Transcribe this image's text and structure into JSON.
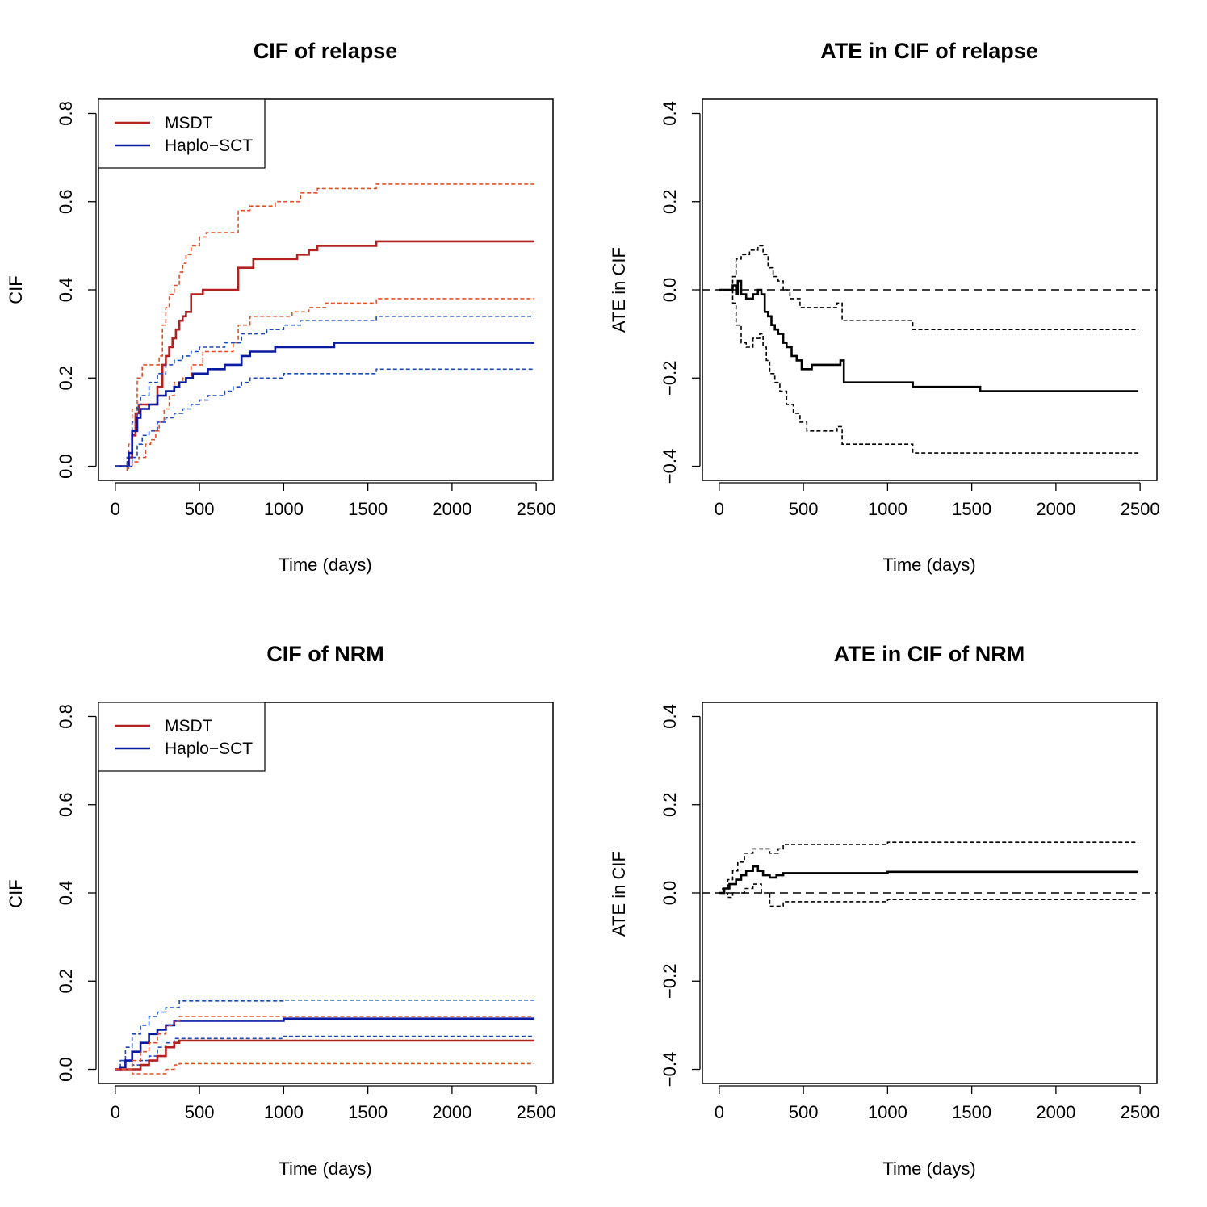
{
  "colors": {
    "msdt": "#b22222",
    "msdt_ci": "#e0502a",
    "haplo": "#0a1aa0",
    "haplo_ci": "#1c4ab8",
    "ate": "#000000"
  },
  "chart_data": [
    {
      "id": "cif-relapse",
      "type": "line",
      "step": true,
      "title": "CIF of relapse",
      "xlabel": "Time (days)",
      "ylabel": "CIF",
      "xlim": [
        0,
        2500
      ],
      "ylim": [
        0,
        0.8
      ],
      "xticks": [
        0,
        500,
        1000,
        1500,
        2000,
        2500
      ],
      "xtick_labels": [
        "0",
        "500",
        "1000",
        "1500",
        "2000",
        "2500"
      ],
      "yticks": [
        0,
        0.2,
        0.4,
        0.6,
        0.8
      ],
      "ytick_labels": [
        "0.0",
        "0.2",
        "0.4",
        "0.6",
        "0.8"
      ],
      "legend": {
        "position": "top-left",
        "entries": [
          {
            "label": "MSDT",
            "color_key": "msdt"
          },
          {
            "label": "Haplo−SCT",
            "color_key": "haplo"
          }
        ]
      },
      "series": [
        {
          "name": "MSDT upper CI",
          "color_key": "msdt_ci",
          "dashed": true,
          "width": 1.6,
          "x": [
            0,
            70,
            80,
            100,
            130,
            160,
            200,
            260,
            280,
            300,
            320,
            350,
            380,
            400,
            420,
            450,
            500,
            540,
            700,
            730,
            800,
            950,
            1000,
            1100,
            1200,
            1550,
            2490
          ],
          "y": [
            0,
            0,
            0.05,
            0.13,
            0.2,
            0.23,
            0.23,
            0.25,
            0.32,
            0.36,
            0.39,
            0.41,
            0.44,
            0.46,
            0.48,
            0.5,
            0.52,
            0.53,
            0.53,
            0.58,
            0.59,
            0.6,
            0.6,
            0.62,
            0.63,
            0.64,
            0.64
          ]
        },
        {
          "name": "MSDT",
          "color_key": "msdt",
          "dashed": false,
          "width": 2.6,
          "x": [
            0,
            70,
            80,
            100,
            120,
            140,
            180,
            230,
            250,
            280,
            300,
            320,
            340,
            360,
            380,
            400,
            420,
            450,
            480,
            520,
            710,
            730,
            790,
            820,
            900,
            1000,
            1080,
            1150,
            1200,
            1550,
            2490
          ],
          "y": [
            0,
            0,
            0.02,
            0.07,
            0.12,
            0.14,
            0.14,
            0.14,
            0.18,
            0.23,
            0.25,
            0.27,
            0.29,
            0.31,
            0.33,
            0.34,
            0.35,
            0.39,
            0.39,
            0.4,
            0.4,
            0.45,
            0.45,
            0.47,
            0.47,
            0.47,
            0.48,
            0.49,
            0.5,
            0.51,
            0.51
          ]
        },
        {
          "name": "MSDT lower CI",
          "color_key": "msdt_ci",
          "dashed": true,
          "width": 1.6,
          "x": [
            0,
            70,
            80,
            100,
            140,
            180,
            210,
            240,
            260,
            290,
            320,
            350,
            400,
            450,
            520,
            700,
            730,
            800,
            950,
            1050,
            1150,
            1250,
            1550,
            2490
          ],
          "y": [
            0,
            -0.01,
            0.0,
            0.01,
            0.02,
            0.05,
            0.06,
            0.08,
            0.1,
            0.13,
            0.16,
            0.19,
            0.2,
            0.23,
            0.26,
            0.28,
            0.32,
            0.34,
            0.34,
            0.35,
            0.36,
            0.37,
            0.38,
            0.38
          ]
        },
        {
          "name": "Haplo-SCT upper CI",
          "color_key": "haplo_ci",
          "dashed": true,
          "width": 1.6,
          "x": [
            0,
            70,
            100,
            130,
            150,
            200,
            250,
            300,
            350,
            400,
            450,
            500,
            550,
            650,
            700,
            750,
            800,
            900,
            1000,
            1100,
            1500,
            1550,
            2490
          ],
          "y": [
            0,
            0.02,
            0.1,
            0.14,
            0.16,
            0.19,
            0.21,
            0.23,
            0.24,
            0.25,
            0.26,
            0.27,
            0.27,
            0.28,
            0.28,
            0.3,
            0.3,
            0.31,
            0.32,
            0.33,
            0.33,
            0.34,
            0.34
          ]
        },
        {
          "name": "Haplo-SCT",
          "color_key": "haplo",
          "dashed": false,
          "width": 2.6,
          "x": [
            0,
            60,
            80,
            100,
            130,
            150,
            200,
            250,
            300,
            350,
            380,
            420,
            460,
            500,
            550,
            650,
            700,
            750,
            800,
            900,
            950,
            1150,
            1300,
            1550,
            2490
          ],
          "y": [
            0,
            0,
            0.03,
            0.08,
            0.11,
            0.13,
            0.14,
            0.16,
            0.17,
            0.18,
            0.19,
            0.2,
            0.21,
            0.21,
            0.22,
            0.23,
            0.23,
            0.25,
            0.26,
            0.26,
            0.27,
            0.27,
            0.28,
            0.28,
            0.28
          ]
        },
        {
          "name": "Haplo-SCT lower CI",
          "color_key": "haplo_ci",
          "dashed": true,
          "width": 1.6,
          "x": [
            0,
            60,
            100,
            130,
            160,
            200,
            250,
            300,
            350,
            400,
            450,
            500,
            550,
            650,
            700,
            750,
            800,
            900,
            1000,
            1200,
            1550,
            2490
          ],
          "y": [
            0,
            0,
            0.02,
            0.05,
            0.07,
            0.08,
            0.1,
            0.11,
            0.12,
            0.13,
            0.14,
            0.15,
            0.16,
            0.17,
            0.18,
            0.19,
            0.2,
            0.2,
            0.21,
            0.21,
            0.22,
            0.22
          ]
        }
      ]
    },
    {
      "id": "ate-relapse",
      "type": "line",
      "step": true,
      "title": "ATE in CIF of relapse",
      "xlabel": "Time (days)",
      "ylabel": "ATE in CIF",
      "xlim": [
        0,
        2500
      ],
      "ylim": [
        -0.4,
        0.4
      ],
      "xticks": [
        0,
        500,
        1000,
        1500,
        2000,
        2500
      ],
      "xtick_labels": [
        "0",
        "500",
        "1000",
        "1500",
        "2000",
        "2500"
      ],
      "yticks": [
        -0.4,
        -0.2,
        0,
        0.2,
        0.4
      ],
      "ytick_labels": [
        "−0.4",
        "−0.2",
        "0.0",
        "0.2",
        "0.4"
      ],
      "reference_line": 0,
      "series": [
        {
          "name": "ATE upper CI",
          "color_key": "ate",
          "dashed": true,
          "width": 1.6,
          "x": [
            0,
            60,
            80,
            100,
            130,
            180,
            230,
            260,
            290,
            320,
            350,
            380,
            420,
            480,
            520,
            700,
            730,
            800,
            1000,
            1150,
            1550,
            2490
          ],
          "y": [
            0,
            0,
            0.03,
            0.07,
            0.08,
            0.09,
            0.1,
            0.08,
            0.05,
            0.03,
            0.02,
            0.0,
            -0.02,
            -0.04,
            -0.04,
            -0.03,
            -0.07,
            -0.07,
            -0.07,
            -0.09,
            -0.09,
            -0.09
          ]
        },
        {
          "name": "ATE estimate",
          "color_key": "ate",
          "dashed": false,
          "width": 2.6,
          "x": [
            0,
            60,
            80,
            100,
            110,
            130,
            160,
            200,
            230,
            250,
            270,
            290,
            310,
            330,
            350,
            380,
            400,
            430,
            460,
            490,
            550,
            700,
            720,
            740,
            780,
            1000,
            1150,
            1300,
            1550,
            2490
          ],
          "y": [
            0,
            0,
            0.01,
            -0.01,
            0.02,
            -0.01,
            -0.02,
            -0.01,
            0.0,
            -0.01,
            -0.05,
            -0.06,
            -0.08,
            -0.09,
            -0.1,
            -0.12,
            -0.13,
            -0.15,
            -0.16,
            -0.18,
            -0.17,
            -0.17,
            -0.16,
            -0.21,
            -0.21,
            -0.21,
            -0.22,
            -0.22,
            -0.23,
            -0.23
          ]
        },
        {
          "name": "ATE lower CI",
          "color_key": "ate",
          "dashed": true,
          "width": 1.6,
          "x": [
            0,
            60,
            80,
            100,
            130,
            160,
            200,
            240,
            260,
            280,
            300,
            330,
            360,
            400,
            440,
            480,
            520,
            700,
            730,
            800,
            1000,
            1150,
            1550,
            2490
          ],
          "y": [
            0,
            0,
            -0.03,
            -0.08,
            -0.12,
            -0.13,
            -0.11,
            -0.1,
            -0.13,
            -0.16,
            -0.19,
            -0.21,
            -0.23,
            -0.26,
            -0.28,
            -0.3,
            -0.32,
            -0.31,
            -0.35,
            -0.35,
            -0.35,
            -0.37,
            -0.37,
            -0.37
          ]
        }
      ]
    },
    {
      "id": "cif-nrm",
      "type": "line",
      "step": true,
      "title": "CIF of NRM",
      "xlabel": "Time (days)",
      "ylabel": "CIF",
      "xlim": [
        0,
        2500
      ],
      "ylim": [
        0,
        0.8
      ],
      "xticks": [
        0,
        500,
        1000,
        1500,
        2000,
        2500
      ],
      "xtick_labels": [
        "0",
        "500",
        "1000",
        "1500",
        "2000",
        "2500"
      ],
      "yticks": [
        0,
        0.2,
        0.4,
        0.6,
        0.8
      ],
      "ytick_labels": [
        "0.0",
        "0.2",
        "0.4",
        "0.6",
        "0.8"
      ],
      "legend": {
        "position": "top-left",
        "entries": [
          {
            "label": "MSDT",
            "color_key": "msdt"
          },
          {
            "label": "Haplo−SCT",
            "color_key": "haplo"
          }
        ]
      },
      "series": [
        {
          "name": "Haplo-SCT upper CI",
          "color_key": "haplo_ci",
          "dashed": true,
          "width": 1.6,
          "x": [
            0,
            30,
            60,
            100,
            150,
            200,
            250,
            300,
            350,
            380,
            1000,
            2490
          ],
          "y": [
            0,
            0.02,
            0.05,
            0.08,
            0.1,
            0.12,
            0.13,
            0.14,
            0.14,
            0.155,
            0.157,
            0.157
          ]
        },
        {
          "name": "Haplo-SCT",
          "color_key": "haplo",
          "dashed": false,
          "width": 2.6,
          "x": [
            0,
            30,
            60,
            100,
            150,
            200,
            250,
            300,
            350,
            380,
            1000,
            2490
          ],
          "y": [
            0,
            0.005,
            0.02,
            0.04,
            0.06,
            0.08,
            0.09,
            0.1,
            0.11,
            0.11,
            0.115,
            0.115
          ]
        },
        {
          "name": "Haplo-SCT lower CI",
          "color_key": "haplo_ci",
          "dashed": true,
          "width": 1.6,
          "x": [
            0,
            50,
            100,
            150,
            200,
            250,
            300,
            350,
            380,
            1000,
            2490
          ],
          "y": [
            0,
            0.0,
            0.01,
            0.02,
            0.03,
            0.05,
            0.06,
            0.07,
            0.07,
            0.075,
            0.075
          ]
        },
        {
          "name": "MSDT upper CI",
          "color_key": "msdt_ci",
          "dashed": true,
          "width": 1.6,
          "x": [
            0,
            50,
            100,
            150,
            200,
            250,
            300,
            350,
            380,
            2490
          ],
          "y": [
            0,
            0.0,
            0.02,
            0.04,
            0.06,
            0.08,
            0.1,
            0.11,
            0.12,
            0.12
          ]
        },
        {
          "name": "MSDT",
          "color_key": "msdt",
          "dashed": false,
          "width": 2.6,
          "x": [
            0,
            80,
            150,
            200,
            250,
            300,
            350,
            380,
            2490
          ],
          "y": [
            0,
            0.0,
            0.01,
            0.02,
            0.03,
            0.05,
            0.06,
            0.065,
            0.065
          ]
        },
        {
          "name": "MSDT lower CI",
          "color_key": "msdt_ci",
          "dashed": true,
          "width": 1.6,
          "x": [
            0,
            100,
            200,
            300,
            350,
            380,
            2490
          ],
          "y": [
            0,
            -0.01,
            -0.01,
            0.0,
            0.01,
            0.013,
            0.013
          ]
        }
      ]
    },
    {
      "id": "ate-nrm",
      "type": "line",
      "step": true,
      "title": "ATE in CIF of NRM",
      "xlabel": "Time (days)",
      "ylabel": "ATE in CIF",
      "xlim": [
        0,
        2500
      ],
      "ylim": [
        -0.4,
        0.4
      ],
      "xticks": [
        0,
        500,
        1000,
        1500,
        2000,
        2500
      ],
      "xtick_labels": [
        "0",
        "500",
        "1000",
        "1500",
        "2000",
        "2500"
      ],
      "yticks": [
        -0.4,
        -0.2,
        0,
        0.2,
        0.4
      ],
      "ytick_labels": [
        "−0.4",
        "−0.2",
        "0.0",
        "0.2",
        "0.4"
      ],
      "reference_line": 0,
      "series": [
        {
          "name": "ATE upper CI",
          "color_key": "ate",
          "dashed": true,
          "width": 1.6,
          "x": [
            0,
            20,
            50,
            80,
            110,
            150,
            200,
            250,
            300,
            350,
            380,
            1000,
            2490
          ],
          "y": [
            0,
            0.01,
            0.03,
            0.05,
            0.07,
            0.09,
            0.1,
            0.1,
            0.09,
            0.1,
            0.11,
            0.115,
            0.115
          ]
        },
        {
          "name": "ATE estimate",
          "color_key": "ate",
          "dashed": false,
          "width": 2.6,
          "x": [
            0,
            30,
            60,
            100,
            130,
            160,
            200,
            230,
            260,
            300,
            340,
            380,
            1000,
            2490
          ],
          "y": [
            0,
            0.01,
            0.02,
            0.03,
            0.04,
            0.05,
            0.06,
            0.05,
            0.04,
            0.035,
            0.04,
            0.045,
            0.048,
            0.048
          ]
        },
        {
          "name": "ATE lower CI",
          "color_key": "ate",
          "dashed": true,
          "width": 1.6,
          "x": [
            0,
            50,
            80,
            100,
            150,
            200,
            250,
            300,
            340,
            380,
            1000,
            2490
          ],
          "y": [
            0,
            -0.01,
            0.0,
            0.0,
            0.01,
            0.02,
            0.0,
            -0.03,
            -0.03,
            -0.02,
            -0.015,
            -0.015
          ]
        }
      ]
    }
  ]
}
